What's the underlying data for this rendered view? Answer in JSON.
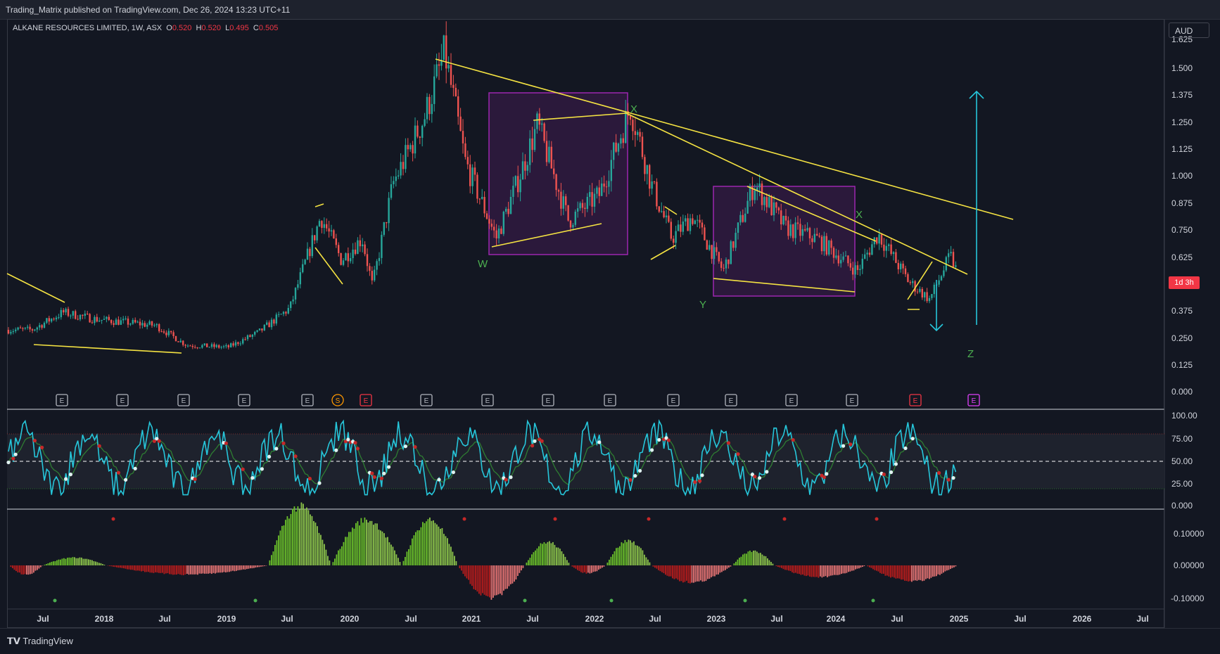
{
  "publish_line": "Trading_Matrix published on TradingView.com, Dec 26, 2024 13:23 UTC+11",
  "legend": {
    "symbol": "ALKANE RESOURCES LIMITED, 1W, ASX",
    "o_label": "O",
    "o_value": "0.520",
    "h_label": "H",
    "h_value": "0.520",
    "l_label": "L",
    "l_value": "0.495",
    "c_label": "C",
    "c_value": "0.505"
  },
  "currency": "AUD",
  "countdown": "1d 3h",
  "colors": {
    "background": "#131722",
    "up_candle": "#26a69a",
    "down_candle": "#ef5350",
    "trendline": "#f5e342",
    "box": "#9c27b0",
    "arrow": "#26c6da",
    "wave_label": "#4caf50",
    "rsi_line": "#26c6da",
    "rsi_signal": "#2e7d32",
    "hist_up": "#6abf2a",
    "hist_down": "#b71c1c"
  },
  "wave_labels": [
    "W",
    "X",
    "Y",
    "X",
    "Z"
  ],
  "price_axis": [
    "1.625",
    "1.500",
    "1.375",
    "1.250",
    "1.125",
    "1.000",
    "0.875",
    "0.750",
    "0.625",
    "0.375",
    "0.250",
    "0.125",
    "0.000"
  ],
  "rsi_axis": [
    "100.00",
    "75.00",
    "50.00",
    "25.00",
    "0.000"
  ],
  "macd_axis": [
    "0.10000",
    "0.00000",
    "-0.10000"
  ],
  "time_axis": [
    "Jul",
    "2018",
    "Jul",
    "2019",
    "Jul",
    "2020",
    "Jul",
    "2021",
    "Jul",
    "2022",
    "Jul",
    "2023",
    "Jul",
    "2024",
    "Jul",
    "2025",
    "Jul",
    "2026",
    "Jul"
  ],
  "events": [
    "E",
    "E",
    "E",
    "E",
    "E",
    "S",
    "E",
    "E",
    "E",
    "E",
    "E",
    "E",
    "E",
    "E",
    "E",
    "E",
    "E"
  ],
  "footer_brand": "TradingView",
  "chart_data": {
    "type": "candlestick",
    "symbol": "ALKANE RESOURCES LIMITED",
    "interval": "1W",
    "exchange": "ASX",
    "currency": "AUD",
    "last": {
      "open": 0.52,
      "high": 0.52,
      "low": 0.495,
      "close": 0.505
    },
    "ylim": [
      0,
      1.625
    ],
    "price_path": [
      [
        "2017-06",
        0.28
      ],
      [
        "2017-09",
        0.36
      ],
      [
        "2017-12",
        0.33
      ],
      [
        "2018-06",
        0.3
      ],
      [
        "2018-09",
        0.21
      ],
      [
        "2019-01",
        0.2
      ],
      [
        "2019-04",
        0.27
      ],
      [
        "2019-07",
        0.38
      ],
      [
        "2019-10",
        0.8
      ],
      [
        "2019-12",
        0.6
      ],
      [
        "2020-02",
        0.7
      ],
      [
        "2020-03",
        0.48
      ],
      [
        "2020-05",
        0.95
      ],
      [
        "2020-08",
        1.25
      ],
      [
        "2020-10",
        1.55
      ],
      [
        "2020-12",
        1.05
      ],
      [
        "2021-03",
        0.7
      ],
      [
        "2021-05",
        0.95
      ],
      [
        "2021-07",
        1.22
      ],
      [
        "2021-10",
        0.78
      ],
      [
        "2022-01",
        0.9
      ],
      [
        "2022-04",
        1.3
      ],
      [
        "2022-06",
        0.95
      ],
      [
        "2022-08",
        0.7
      ],
      [
        "2022-10",
        0.8
      ],
      [
        "2023-01",
        0.55
      ],
      [
        "2023-04",
        0.95
      ],
      [
        "2023-07",
        0.75
      ],
      [
        "2023-10",
        0.7
      ],
      [
        "2024-02",
        0.55
      ],
      [
        "2024-04",
        0.72
      ],
      [
        "2024-07",
        0.5
      ],
      [
        "2024-09",
        0.42
      ],
      [
        "2024-11",
        0.62
      ],
      [
        "2024-12",
        0.505
      ]
    ],
    "indicators": [
      "RSI (0-100)",
      "Histogram oscillator"
    ]
  }
}
